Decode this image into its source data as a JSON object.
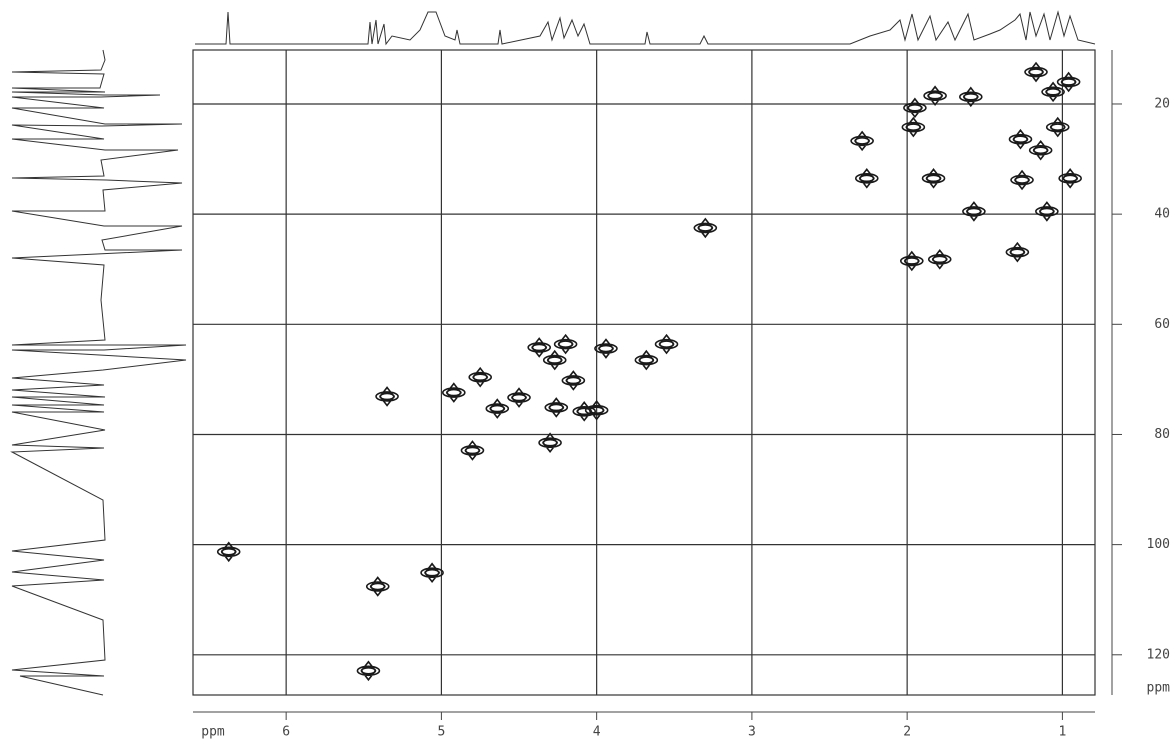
{
  "chart_data": {
    "type": "scatter",
    "x_label": "ppm",
    "y_label": "ppm",
    "x": [
      1.17,
      0.96,
      1.06,
      1.59,
      1.82,
      1.95,
      1.96,
      1.03,
      1.27,
      2.29,
      1.14,
      2.26,
      1.83,
      1.26,
      0.95,
      1.57,
      1.1,
      1.29,
      1.79,
      1.97,
      3.3,
      4.37,
      4.2,
      3.94,
      3.55,
      4.27,
      3.68,
      4.75,
      4.15,
      4.92,
      5.35,
      4.5,
      4.64,
      4.26,
      4.08,
      4.0,
      4.3,
      4.8,
      6.37,
      5.06,
      5.41,
      5.47
    ],
    "values": [
      14.2,
      16.0,
      17.8,
      18.7,
      18.5,
      20.7,
      24.2,
      24.2,
      26.4,
      26.7,
      28.4,
      33.5,
      33.5,
      33.8,
      33.5,
      39.5,
      39.5,
      46.9,
      48.2,
      48.5,
      42.5,
      64.2,
      63.6,
      64.4,
      63.6,
      66.5,
      66.5,
      69.6,
      70.2,
      72.4,
      73.1,
      73.3,
      75.3,
      75.1,
      75.8,
      75.6,
      81.5,
      82.9,
      101.3,
      105.1,
      107.6,
      122.9
    ],
    "color": "#1a1a1a",
    "xlim": [
      6.6,
      0.79
    ],
    "ylim": [
      10.2,
      127.3
    ],
    "xticks": [
      6,
      5,
      4,
      3,
      2,
      1
    ],
    "yticks": [
      20,
      40,
      60,
      80,
      100,
      120
    ],
    "grid": true
  }
}
